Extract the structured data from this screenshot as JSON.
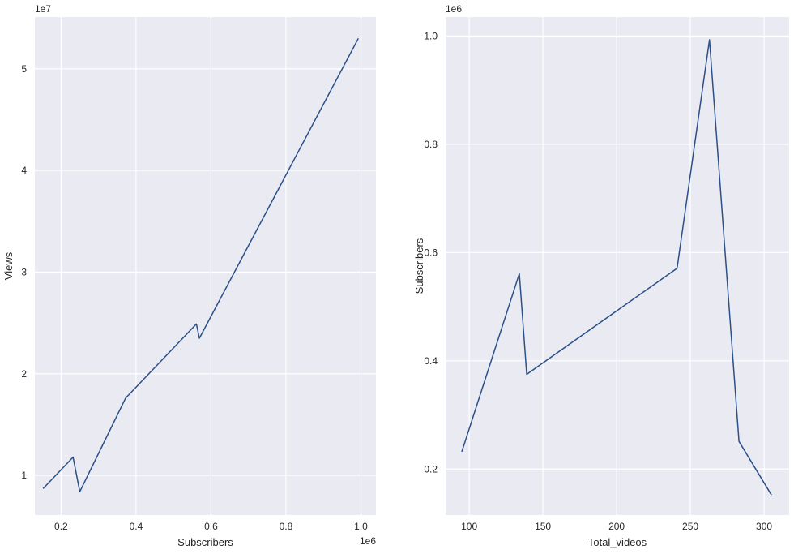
{
  "chart_data": [
    {
      "type": "line",
      "xlabel": "Subscribers",
      "ylabel": "Views",
      "x_offset_label": "1e6",
      "y_offset_label": "1e7",
      "xlim": [
        0.13,
        1.04
      ],
      "ylim": [
        0.61,
        5.51
      ],
      "xticks": [
        0.2,
        0.4,
        0.6,
        0.8,
        1.0
      ],
      "xtick_labels": [
        "0.2",
        "0.4",
        "0.6",
        "0.8",
        "1.0"
      ],
      "yticks": [
        1,
        2,
        3,
        4,
        5
      ],
      "ytick_labels": [
        "1",
        "2",
        "3",
        "4",
        "5"
      ],
      "grid": true,
      "color": "#2a5087",
      "x": [
        0.152,
        0.232,
        0.25,
        0.372,
        0.561,
        0.569,
        0.993
      ],
      "y": [
        0.87,
        1.18,
        0.84,
        1.76,
        2.49,
        2.35,
        5.3
      ]
    },
    {
      "type": "line",
      "xlabel": "Total_videos",
      "ylabel": "Subscribers",
      "x_offset_label": "",
      "y_offset_label": "1e6",
      "xlim": [
        84,
        317
      ],
      "ylim": [
        0.115,
        1.035
      ],
      "xticks": [
        100,
        150,
        200,
        250,
        300
      ],
      "xtick_labels": [
        "100",
        "150",
        "200",
        "250",
        "300"
      ],
      "yticks": [
        0.2,
        0.4,
        0.6,
        0.8,
        1.0
      ],
      "ytick_labels": [
        "0.2",
        "0.4",
        "0.6",
        "0.8",
        "1.0"
      ],
      "grid": true,
      "color": "#2a5087",
      "x": [
        95,
        134,
        139,
        241,
        263,
        283,
        305
      ],
      "y": [
        0.232,
        0.561,
        0.375,
        0.571,
        0.993,
        0.251,
        0.152
      ]
    }
  ]
}
